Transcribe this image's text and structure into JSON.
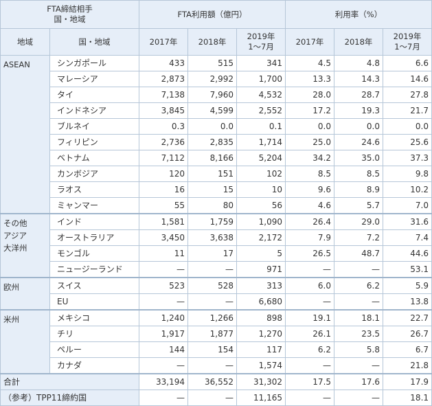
{
  "header": {
    "partner_label": "FTA締結相手\n国・地域",
    "amount_group": "FTA利用額（億円）",
    "rate_group": "利用率（%）",
    "region_col": "地域",
    "country_col": "国・地域",
    "years": [
      "2017年",
      "2018年",
      "2019年\n1〜7月",
      "2017年",
      "2018年",
      "2019年\n1〜7月"
    ]
  },
  "rows": [
    {
      "region": "ASEAN",
      "country": "シンガポール",
      "v": [
        "433",
        "515",
        "341",
        "4.5",
        "4.8",
        "6.6"
      ]
    },
    {
      "region": "",
      "country": "マレーシア",
      "v": [
        "2,873",
        "2,992",
        "1,700",
        "13.3",
        "14.3",
        "14.6"
      ]
    },
    {
      "region": "",
      "country": "タイ",
      "v": [
        "7,138",
        "7,960",
        "4,532",
        "28.0",
        "28.7",
        "27.8"
      ]
    },
    {
      "region": "",
      "country": "インドネシア",
      "v": [
        "3,845",
        "4,599",
        "2,552",
        "17.2",
        "19.3",
        "21.7"
      ]
    },
    {
      "region": "",
      "country": "ブルネイ",
      "v": [
        "0.3",
        "0.0",
        "0.1",
        "0.0",
        "0.0",
        "0.0"
      ]
    },
    {
      "region": "",
      "country": "フィリピン",
      "v": [
        "2,736",
        "2,835",
        "1,714",
        "25.0",
        "24.6",
        "25.6"
      ]
    },
    {
      "region": "",
      "country": "ベトナム",
      "v": [
        "7,112",
        "8,166",
        "5,204",
        "34.2",
        "35.0",
        "37.3"
      ]
    },
    {
      "region": "",
      "country": "カンボジア",
      "v": [
        "120",
        "151",
        "102",
        "8.5",
        "8.5",
        "9.8"
      ]
    },
    {
      "region": "",
      "country": "ラオス",
      "v": [
        "16",
        "15",
        "10",
        "9.6",
        "8.9",
        "10.2"
      ]
    },
    {
      "region": "",
      "country": "ミャンマー",
      "v": [
        "55",
        "80",
        "56",
        "4.6",
        "5.7",
        "7.0"
      ]
    },
    {
      "region": "その他\nアジア\n大洋州",
      "country": "インド",
      "v": [
        "1,581",
        "1,759",
        "1,090",
        "26.4",
        "29.0",
        "31.6"
      ]
    },
    {
      "region": "",
      "country": "オーストラリア",
      "v": [
        "3,450",
        "3,638",
        "2,172",
        "7.9",
        "7.2",
        "7.4"
      ]
    },
    {
      "region": "",
      "country": "モンゴル",
      "v": [
        "11",
        "17",
        "5",
        "26.5",
        "48.7",
        "44.6"
      ]
    },
    {
      "region": "",
      "country": "ニュージーランド",
      "v": [
        "—",
        "—",
        "971",
        "—",
        "—",
        "53.1"
      ]
    },
    {
      "region": "欧州",
      "country": "スイス",
      "v": [
        "523",
        "528",
        "313",
        "6.0",
        "6.2",
        "5.9"
      ]
    },
    {
      "region": "",
      "country": "EU",
      "v": [
        "—",
        "—",
        "6,680",
        "—",
        "—",
        "13.8"
      ]
    },
    {
      "region": "米州",
      "country": "メキシコ",
      "v": [
        "1,240",
        "1,266",
        "898",
        "19.1",
        "18.1",
        "22.7"
      ]
    },
    {
      "region": "",
      "country": "チリ",
      "v": [
        "1,917",
        "1,877",
        "1,270",
        "26.1",
        "23.5",
        "26.7"
      ]
    },
    {
      "region": "",
      "country": "ペルー",
      "v": [
        "144",
        "154",
        "117",
        "6.2",
        "5.8",
        "6.7"
      ]
    },
    {
      "region": "",
      "country": "カナダ",
      "v": [
        "—",
        "—",
        "1,574",
        "—",
        "—",
        "21.8"
      ]
    }
  ],
  "totals": [
    {
      "label": "合計",
      "v": [
        "33,194",
        "36,552",
        "31,302",
        "17.5",
        "17.6",
        "17.9"
      ]
    },
    {
      "label": "（参考）TPP11締約国",
      "v": [
        "—",
        "—",
        "11,165",
        "—",
        "—",
        "18.1"
      ]
    }
  ]
}
